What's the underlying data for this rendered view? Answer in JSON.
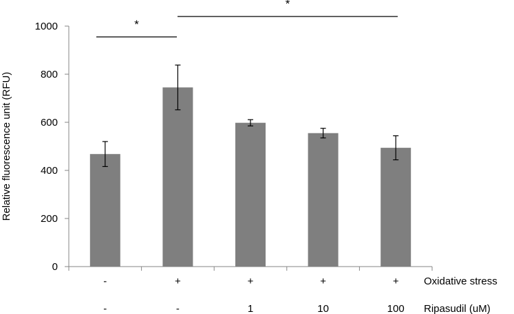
{
  "chart_data": {
    "type": "bar",
    "ylabel": "Relative fluorescence unit (RFU)",
    "ylim": [
      0,
      1000
    ],
    "yticks": [
      0,
      200,
      400,
      600,
      800,
      1000
    ],
    "grid": false,
    "values": [
      468,
      745,
      598,
      555,
      494
    ],
    "errors": [
      52,
      93,
      13,
      20,
      50
    ],
    "bar_color": "#7f7f7f",
    "conditions": [
      {
        "label": "Oxidative stress",
        "values": [
          "-",
          "+",
          "+",
          "+",
          "+"
        ]
      },
      {
        "label": "Ripasudil (uM)",
        "values": [
          "-",
          "-",
          "1",
          "10",
          "100"
        ]
      }
    ],
    "significance": [
      {
        "from": 0,
        "to": 1,
        "y": 955,
        "label": "*"
      },
      {
        "from": 1,
        "to": 4,
        "y": 1040,
        "label": "*"
      }
    ]
  }
}
